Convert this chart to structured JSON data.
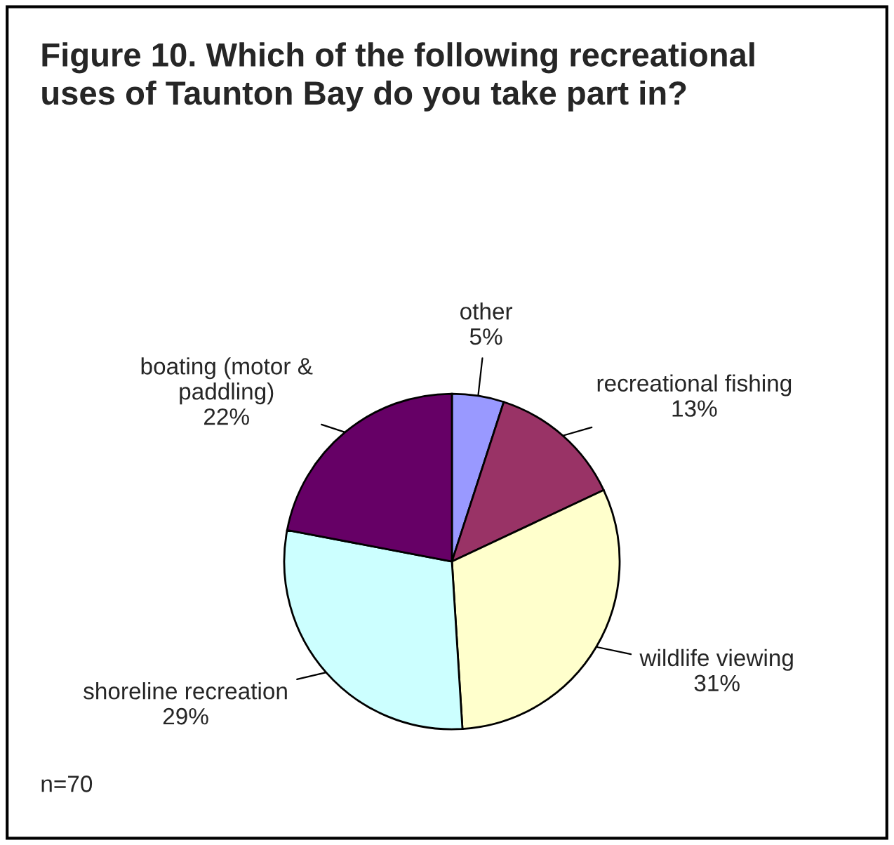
{
  "chart_data": {
    "type": "pie",
    "title": "Figure 10. Which of the following recreational\nuses of Taunton Bay do you take part in?",
    "categories": [
      "other",
      "recreational fishing",
      "wildlife viewing",
      "shoreline recreation",
      "boating (motor &\npaddling)"
    ],
    "values": [
      5,
      13,
      31,
      29,
      22
    ],
    "colors": [
      "#9999ff",
      "#993366",
      "#ffffcc",
      "#ccffff",
      "#660066"
    ],
    "value_labels": [
      "5%",
      "13%",
      "31%",
      "29%",
      "22%"
    ],
    "annotations": [
      "n=70"
    ]
  }
}
